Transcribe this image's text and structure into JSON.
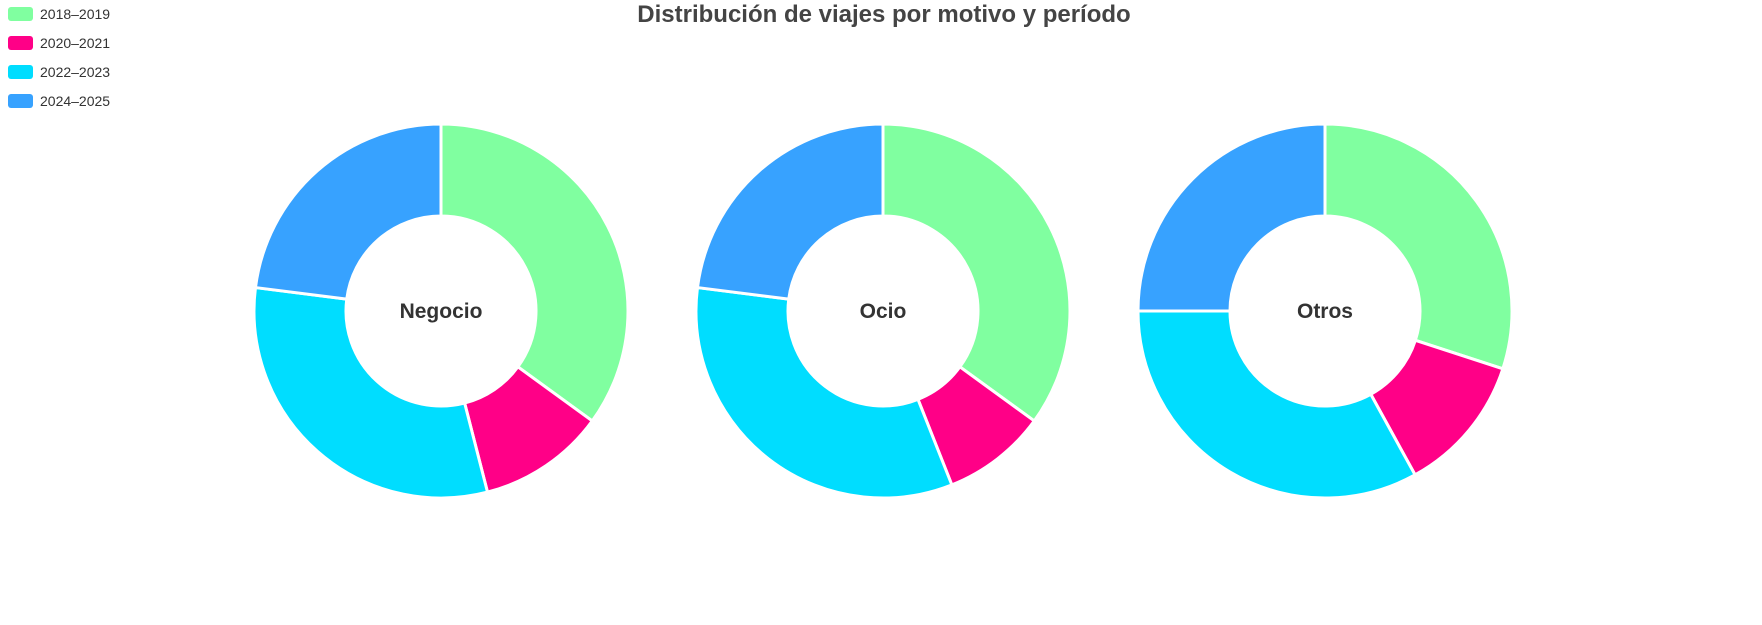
{
  "chart_data": {
    "type": "pie",
    "variant": "donut",
    "title": "Distribución de viajes por motivo y período",
    "legend": {
      "placement": "top-left",
      "entries": [
        "2018–2019",
        "2020–2021",
        "2022–2023",
        "2024–2025"
      ]
    },
    "categories": [
      "2018–2019",
      "2020–2021",
      "2022–2023",
      "2024–2025"
    ],
    "colors": [
      "#80ffa0",
      "#ff0087",
      "#00ddff",
      "#37a2ff"
    ],
    "charts": [
      {
        "name": "Negocio",
        "values": [
          35,
          11,
          31,
          23
        ]
      },
      {
        "name": "Ocio",
        "values": [
          35,
          9,
          33,
          23
        ]
      },
      {
        "name": "Otros",
        "values": [
          30,
          12,
          33,
          25
        ]
      }
    ]
  }
}
